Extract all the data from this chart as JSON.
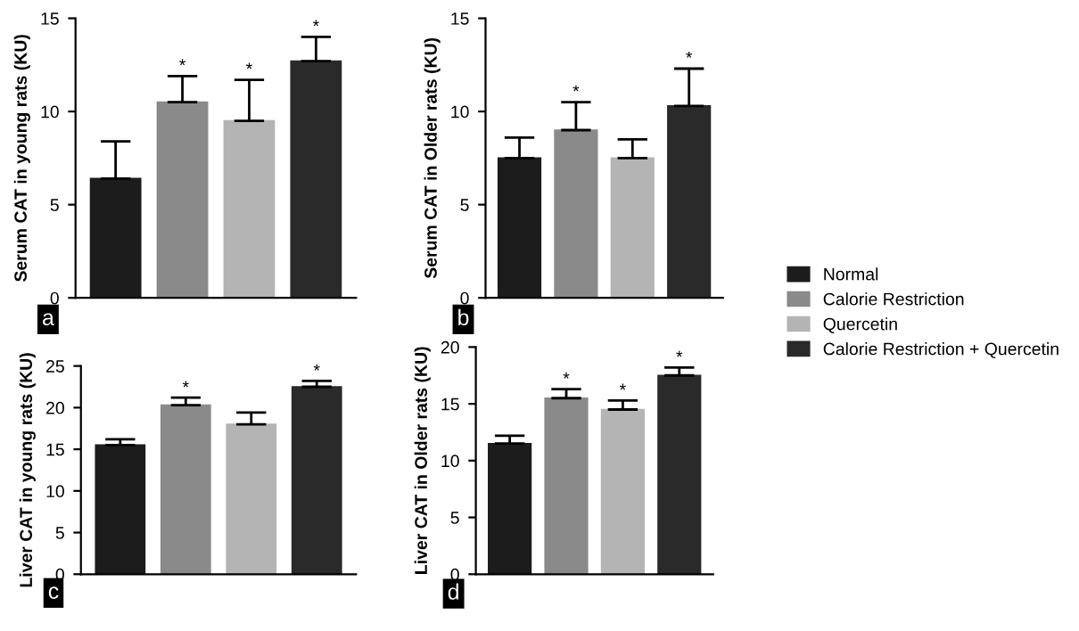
{
  "chart_data": [
    {
      "type": "bar",
      "ylabel": "Serum CAT in young rats (KU)",
      "categories": [
        null
      ],
      "ylim": [
        0,
        15
      ],
      "yticks": [
        0,
        5,
        10,
        15
      ],
      "grid": false,
      "legend": false,
      "annotations": [
        "a"
      ],
      "series": [
        {
          "color": "#1c1c1c",
          "values": [
            6.4
          ],
          "errors": [
            [
              6.4,
              8.4
            ]
          ],
          "value_labels": [
            null
          ]
        },
        {
          "color": "#8a8a8a",
          "values": [
            10.5
          ],
          "errors": [
            [
              10.5,
              11.9
            ]
          ],
          "value_labels": [
            "*"
          ]
        },
        {
          "color": "#b4b4b4",
          "values": [
            9.5
          ],
          "errors": [
            [
              9.5,
              11.7
            ]
          ],
          "value_labels": [
            "*"
          ]
        },
        {
          "color": "#2a2a2a",
          "values": [
            12.7
          ],
          "errors": [
            [
              12.7,
              14.0
            ]
          ],
          "value_labels": [
            "*"
          ]
        }
      ]
    },
    {
      "type": "bar",
      "ylabel": "Serum CAT in Older rats (KU)",
      "categories": [
        null
      ],
      "ylim": [
        0,
        15
      ],
      "yticks": [
        0,
        5,
        10,
        15
      ],
      "grid": false,
      "legend": false,
      "annotations": [
        "b"
      ],
      "series": [
        {
          "color": "#1c1c1c",
          "values": [
            7.5
          ],
          "errors": [
            [
              7.5,
              8.6
            ]
          ],
          "value_labels": [
            null
          ]
        },
        {
          "color": "#8a8a8a",
          "values": [
            9.0
          ],
          "errors": [
            [
              9.0,
              10.5
            ]
          ],
          "value_labels": [
            "*"
          ]
        },
        {
          "color": "#b4b4b4",
          "values": [
            7.5
          ],
          "errors": [
            [
              7.5,
              8.5
            ]
          ],
          "value_labels": [
            null
          ]
        },
        {
          "color": "#2a2a2a",
          "values": [
            10.3
          ],
          "errors": [
            [
              10.3,
              12.3
            ]
          ],
          "value_labels": [
            "*"
          ]
        }
      ]
    },
    {
      "type": "bar",
      "ylabel": "Liver CAT in young rats (KU)",
      "categories": [
        null
      ],
      "ylim": [
        0,
        25
      ],
      "yticks": [
        0,
        5,
        10,
        15,
        20,
        25
      ],
      "grid": false,
      "legend": false,
      "annotations": [
        "c"
      ],
      "series": [
        {
          "color": "#1c1c1c",
          "values": [
            15.5
          ],
          "errors": [
            [
              15.5,
              16.2
            ]
          ],
          "value_labels": [
            null
          ]
        },
        {
          "color": "#8a8a8a",
          "values": [
            20.3
          ],
          "errors": [
            [
              20.3,
              21.2
            ]
          ],
          "value_labels": [
            "*"
          ]
        },
        {
          "color": "#b4b4b4",
          "values": [
            18.0
          ],
          "errors": [
            [
              18.0,
              19.4
            ]
          ],
          "value_labels": [
            null
          ]
        },
        {
          "color": "#2a2a2a",
          "values": [
            22.5
          ],
          "errors": [
            [
              22.5,
              23.2
            ]
          ],
          "value_labels": [
            "*"
          ]
        }
      ]
    },
    {
      "type": "bar",
      "ylabel": "Liver CAT in Older rats (KU)",
      "categories": [
        null
      ],
      "ylim": [
        0,
        20
      ],
      "yticks": [
        0,
        5,
        10,
        15,
        20
      ],
      "grid": false,
      "legend": "right",
      "annotations": [
        "d"
      ],
      "series": [
        {
          "name": "Normal",
          "color": "#1c1c1c",
          "values": [
            11.5
          ],
          "errors": [
            [
              11.5,
              12.2
            ]
          ],
          "value_labels": [
            null
          ]
        },
        {
          "name": "Calorie Restriction",
          "color": "#8a8a8a",
          "values": [
            15.5
          ],
          "errors": [
            [
              15.5,
              16.3
            ]
          ],
          "value_labels": [
            "*"
          ]
        },
        {
          "name": "Quercetin",
          "color": "#b4b4b4",
          "values": [
            14.5
          ],
          "errors": [
            [
              14.5,
              15.3
            ]
          ],
          "value_labels": [
            "*"
          ]
        },
        {
          "name": "Calorie Restriction + Quercetin",
          "color": "#2a2a2a",
          "values": [
            17.5
          ],
          "errors": [
            [
              17.5,
              18.2
            ]
          ],
          "value_labels": [
            "*"
          ]
        }
      ]
    }
  ]
}
